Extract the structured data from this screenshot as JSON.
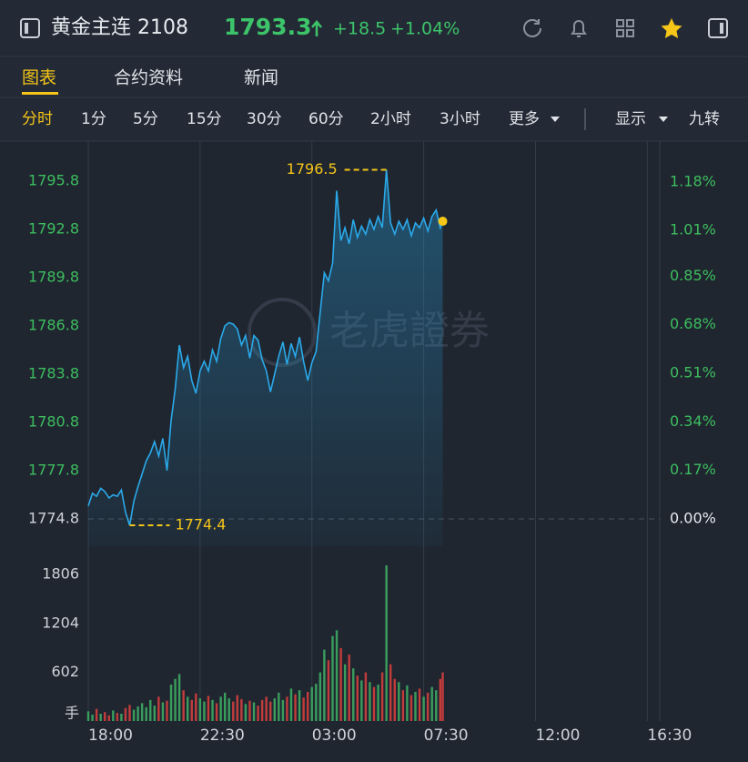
{
  "header": {
    "title": "黄金主连 2108",
    "price": "1793.3",
    "change": "+18.5",
    "change_pct": "+1.04%"
  },
  "tabs": [
    "图表",
    "合约资料",
    "新闻"
  ],
  "toolbar": {
    "intervals": [
      "分时",
      "1分",
      "5分",
      "15分",
      "30分",
      "60分",
      "2小时",
      "3小时"
    ],
    "more": "更多",
    "display": "显示",
    "jiuzhuan": "九转"
  },
  "chart_data": [
    {
      "type": "line",
      "color": "#2aa9ea",
      "up_color": "#3dbd5e",
      "flat_color": "#cfd3d9",
      "x": [
        "18:00",
        "18:10",
        "18:20",
        "18:30",
        "18:40",
        "18:50",
        "19:00",
        "19:10",
        "19:20",
        "19:30",
        "19:40",
        "19:50",
        "20:00",
        "20:10",
        "20:20",
        "20:30",
        "20:40",
        "20:50",
        "21:00",
        "21:10",
        "21:20",
        "21:30",
        "21:40",
        "21:50",
        "22:00",
        "22:10",
        "22:20",
        "22:30",
        "22:40",
        "22:50",
        "23:00",
        "23:10",
        "23:20",
        "23:30",
        "23:40",
        "23:50",
        "00:00",
        "00:10",
        "00:20",
        "00:30",
        "00:40",
        "00:50",
        "01:00",
        "01:10",
        "01:20",
        "01:30",
        "01:40",
        "01:50",
        "02:00",
        "02:10",
        "02:20",
        "02:30",
        "02:40",
        "02:50",
        "03:00",
        "03:10",
        "03:20",
        "03:30",
        "03:40",
        "03:50",
        "04:00",
        "04:10",
        "04:20",
        "04:30",
        "04:40",
        "04:50",
        "05:00",
        "05:10",
        "05:20",
        "05:30",
        "05:40",
        "05:50",
        "06:00",
        "06:10",
        "06:20",
        "06:30",
        "06:40",
        "06:50",
        "07:00",
        "07:10",
        "07:20",
        "07:30",
        "07:40",
        "07:50",
        "08:00",
        "08:10",
        "08:16"
      ],
      "values": [
        1775.6,
        1776.4,
        1776.2,
        1776.7,
        1776.5,
        1776.1,
        1776.3,
        1776.2,
        1776.6,
        1775.2,
        1774.4,
        1775.9,
        1776.8,
        1777.6,
        1778.4,
        1778.9,
        1779.6,
        1778.7,
        1779.8,
        1777.8,
        1780.9,
        1782.9,
        1785.6,
        1784.2,
        1784.9,
        1783.4,
        1782.6,
        1784.0,
        1784.6,
        1784.0,
        1785.3,
        1784.6,
        1786.0,
        1786.8,
        1787.0,
        1786.9,
        1786.6,
        1785.6,
        1786.2,
        1784.8,
        1786.2,
        1785.9,
        1784.7,
        1784.0,
        1782.7,
        1783.8,
        1784.9,
        1785.8,
        1784.4,
        1785.7,
        1784.9,
        1786.1,
        1784.6,
        1783.4,
        1784.5,
        1785.2,
        1787.6,
        1790.1,
        1789.6,
        1790.7,
        1795.2,
        1792.1,
        1792.9,
        1791.9,
        1793.4,
        1792.3,
        1793.0,
        1792.5,
        1793.4,
        1792.8,
        1793.6,
        1792.9,
        1796.5,
        1793.2,
        1792.5,
        1793.3,
        1792.8,
        1793.4,
        1792.4,
        1793.2,
        1792.9,
        1793.5,
        1792.7,
        1793.6,
        1794.0,
        1792.9,
        1793.3
      ],
      "xlim": [
        "18:00",
        "17:00"
      ],
      "ylim": [
        1773.1,
        1798.0
      ],
      "yticks": [
        1774.8,
        1777.8,
        1780.8,
        1783.8,
        1786.8,
        1789.8,
        1792.8,
        1795.8
      ],
      "baseline": 1774.8,
      "y2lim": [
        -0.096,
        1.307
      ],
      "y2ticks": [
        {
          "value": 0,
          "label": "0.00%"
        },
        {
          "value": 0.17,
          "label": "0.17%"
        },
        {
          "value": 0.34,
          "label": "0.34%"
        },
        {
          "value": 0.51,
          "label": "0.51%"
        },
        {
          "value": 0.68,
          "label": "0.68%"
        },
        {
          "value": 0.85,
          "label": "0.85%"
        },
        {
          "value": 1.01,
          "label": "1.01%"
        },
        {
          "value": 1.18,
          "label": "1.18%"
        }
      ],
      "high_label": "1796.5",
      "low_label": "1774.4",
      "watermark": "老虎證券"
    },
    {
      "type": "bar",
      "ylabel": "手",
      "x": [
        "18:00",
        "18:10",
        "18:20",
        "18:30",
        "18:40",
        "18:50",
        "19:00",
        "19:10",
        "19:20",
        "19:30",
        "19:40",
        "19:50",
        "20:00",
        "20:10",
        "20:20",
        "20:30",
        "20:40",
        "20:50",
        "21:00",
        "21:10",
        "21:20",
        "21:30",
        "21:40",
        "21:50",
        "22:00",
        "22:10",
        "22:20",
        "22:30",
        "22:40",
        "22:50",
        "23:00",
        "23:10",
        "23:20",
        "23:30",
        "23:40",
        "23:50",
        "00:00",
        "00:10",
        "00:20",
        "00:30",
        "00:40",
        "00:50",
        "01:00",
        "01:10",
        "01:20",
        "01:30",
        "01:40",
        "01:50",
        "02:00",
        "02:10",
        "02:20",
        "02:30",
        "02:40",
        "02:50",
        "03:00",
        "03:10",
        "03:20",
        "03:30",
        "03:40",
        "03:50",
        "04:00",
        "04:10",
        "04:20",
        "04:30",
        "04:40",
        "04:50",
        "05:00",
        "05:10",
        "05:20",
        "05:30",
        "05:40",
        "05:50",
        "06:00",
        "06:10",
        "06:20",
        "06:30",
        "06:40",
        "06:50",
        "07:00",
        "07:10",
        "07:20",
        "07:30",
        "07:40",
        "07:50",
        "08:00",
        "08:10",
        "08:16"
      ],
      "values": [
        120,
        80,
        150,
        90,
        110,
        70,
        130,
        100,
        90,
        160,
        200,
        140,
        180,
        220,
        170,
        260,
        190,
        300,
        230,
        250,
        450,
        520,
        580,
        380,
        300,
        260,
        340,
        280,
        240,
        310,
        260,
        220,
        300,
        350,
        280,
        240,
        320,
        270,
        210,
        250,
        230,
        190,
        260,
        300,
        240,
        280,
        350,
        260,
        300,
        400,
        330,
        380,
        290,
        360,
        420,
        460,
        600,
        880,
        750,
        1050,
        1120,
        900,
        700,
        820,
        650,
        560,
        500,
        600,
        480,
        420,
        450,
        600,
        1920,
        700,
        520,
        480,
        380,
        440,
        320,
        360,
        400,
        300,
        350,
        420,
        380,
        520,
        600
      ],
      "colors": [
        "#3a9d5d",
        "#3a9d5d",
        "#c23c3c",
        "#3a9d5d",
        "#c23c3c",
        "#c23c3c",
        "#3a9d5d",
        "#c23c3c",
        "#3a9d5d",
        "#c23c3c",
        "#c23c3c",
        "#3a9d5d",
        "#3a9d5d",
        "#3a9d5d",
        "#3a9d5d",
        "#3a9d5d",
        "#3a9d5d",
        "#c23c3c",
        "#3a9d5d",
        "#c23c3c",
        "#3a9d5d",
        "#3a9d5d",
        "#3a9d5d",
        "#c23c3c",
        "#3a9d5d",
        "#c23c3c",
        "#c23c3c",
        "#3a9d5d",
        "#3a9d5d",
        "#c23c3c",
        "#3a9d5d",
        "#c23c3c",
        "#3a9d5d",
        "#3a9d5d",
        "#3a9d5d",
        "#c23c3c",
        "#c23c3c",
        "#c23c3c",
        "#3a9d5d",
        "#c23c3c",
        "#3a9d5d",
        "#c23c3c",
        "#c23c3c",
        "#c23c3c",
        "#c23c3c",
        "#3a9d5d",
        "#3a9d5d",
        "#3a9d5d",
        "#c23c3c",
        "#3a9d5d",
        "#c23c3c",
        "#3a9d5d",
        "#c23c3c",
        "#c23c3c",
        "#3a9d5d",
        "#3a9d5d",
        "#3a9d5d",
        "#3a9d5d",
        "#c23c3c",
        "#3a9d5d",
        "#3a9d5d",
        "#c23c3c",
        "#3a9d5d",
        "#c23c3c",
        "#3a9d5d",
        "#c23c3c",
        "#3a9d5d",
        "#c23c3c",
        "#3a9d5d",
        "#c23c3c",
        "#3a9d5d",
        "#c23c3c",
        "#3a9d5d",
        "#c23c3c",
        "#c23c3c",
        "#3a9d5d",
        "#c23c3c",
        "#3a9d5d",
        "#c23c3c",
        "#3a9d5d",
        "#c23c3c",
        "#3a9d5d",
        "#c23c3c",
        "#3a9d5d",
        "#3a9d5d",
        "#c23c3c",
        "#c23c3c"
      ],
      "xlim": [
        "18:00",
        "17:00"
      ],
      "ylim": [
        0,
        2100
      ],
      "yticks": [
        602,
        1204,
        1806
      ],
      "xticks": [
        "18:00",
        "22:30",
        "03:00",
        "07:30",
        "12:00",
        "16:30"
      ]
    }
  ]
}
